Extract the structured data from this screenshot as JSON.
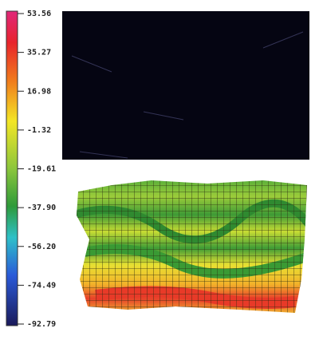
{
  "colorbar": {
    "labels": [
      "53.56",
      "35.27",
      "16.98",
      "-1.32",
      "-19.61",
      "-37.90",
      "-56.20",
      "-74.49",
      "-92.79"
    ]
  }
}
